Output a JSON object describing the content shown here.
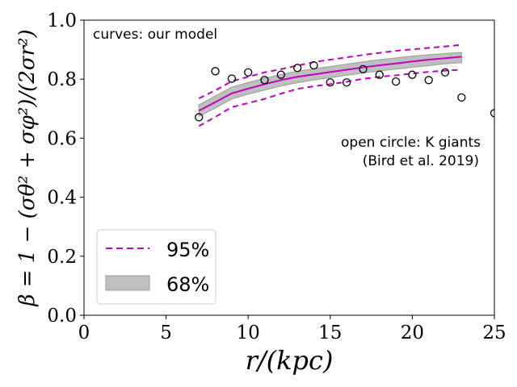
{
  "chart_data": {
    "type": "line",
    "xlabel": "r/(kpc)",
    "ylabel": "β = 1 − (σθ² + σφ²)/(2σr²)",
    "xlim": [
      0,
      25
    ],
    "ylim": [
      0,
      1.0
    ],
    "x_ticks": [
      0,
      5,
      10,
      15,
      20,
      25
    ],
    "y_ticks": [
      0.0,
      0.2,
      0.4,
      0.6,
      0.8,
      1.0
    ],
    "x_tick_labels": [
      "0",
      "5",
      "10",
      "15",
      "20",
      "25"
    ],
    "y_tick_labels": [
      "0.0",
      "0.2",
      "0.4",
      "0.6",
      "0.8",
      "1.0"
    ],
    "annotations": {
      "model": "curves: our model",
      "data_line1": "open circle: K giants",
      "data_line2": "(Bird et al. 2019)"
    },
    "legend": {
      "placement": "lower-left",
      "entries": [
        {
          "label": "95%",
          "style": "dashed",
          "color": "#c000c0"
        },
        {
          "label": "68%",
          "style": "band",
          "color": "#bfbfbf"
        }
      ]
    },
    "model": {
      "x": [
        7,
        8,
        9,
        10,
        11,
        12,
        13,
        14,
        15,
        16,
        17,
        18,
        19,
        20,
        21,
        22,
        23
      ],
      "median": [
        0.693,
        0.722,
        0.752,
        0.768,
        0.783,
        0.797,
        0.808,
        0.816,
        0.824,
        0.832,
        0.84,
        0.847,
        0.853,
        0.86,
        0.866,
        0.871,
        0.876
      ],
      "band68_upper": [
        0.713,
        0.743,
        0.773,
        0.789,
        0.803,
        0.816,
        0.827,
        0.835,
        0.843,
        0.851,
        0.859,
        0.866,
        0.872,
        0.878,
        0.883,
        0.887,
        0.891
      ],
      "band68_lower": [
        0.674,
        0.702,
        0.733,
        0.749,
        0.763,
        0.777,
        0.788,
        0.797,
        0.805,
        0.813,
        0.821,
        0.828,
        0.834,
        0.84,
        0.846,
        0.852,
        0.856
      ],
      "ci95_upper": [
        0.735,
        0.762,
        0.793,
        0.808,
        0.823,
        0.834,
        0.846,
        0.858,
        0.866,
        0.874,
        0.882,
        0.889,
        0.896,
        0.901,
        0.906,
        0.911,
        0.916
      ],
      "ci95_lower": [
        0.641,
        0.672,
        0.705,
        0.719,
        0.733,
        0.751,
        0.767,
        0.776,
        0.783,
        0.791,
        0.801,
        0.808,
        0.813,
        0.819,
        0.825,
        0.829,
        0.832
      ]
    },
    "k_giants": {
      "x": [
        7,
        8,
        9,
        10,
        11,
        12,
        13,
        14,
        15,
        16,
        17,
        18,
        19,
        20,
        21,
        22,
        23,
        25
      ],
      "y": [
        0.671,
        0.827,
        0.802,
        0.823,
        0.797,
        0.815,
        0.838,
        0.847,
        0.789,
        0.789,
        0.834,
        0.815,
        0.792,
        0.815,
        0.797,
        0.823,
        0.738,
        0.685
      ]
    },
    "colors": {
      "model": "#c000c0",
      "band": "#bfbfbf",
      "band_edge": "#9a9a9a",
      "points": "#000000"
    }
  }
}
